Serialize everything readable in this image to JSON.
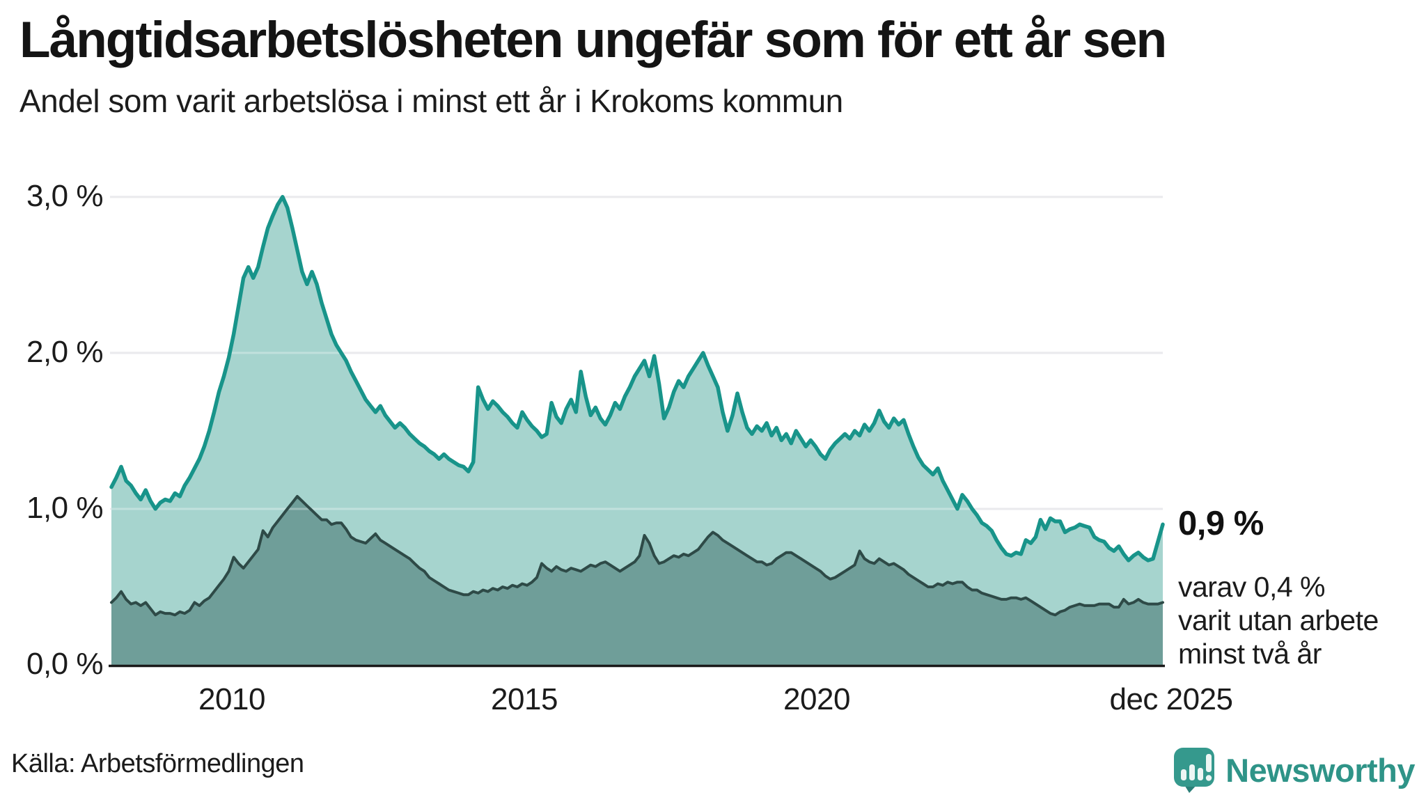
{
  "chart_data": {
    "type": "area",
    "title": "Långtidsarbetslösheten ungefär som för ett år sen",
    "subtitle": "Andel som varit arbetslösa i minst ett år i Krokoms kommun",
    "x_unit": "month",
    "x_range": [
      "jan 2008",
      "dec 2025"
    ],
    "x_ticks": [
      {
        "label": "2010",
        "month_index": 24
      },
      {
        "label": "2015",
        "month_index": 84
      },
      {
        "label": "2020",
        "month_index": 144
      },
      {
        "label": "dec 2025",
        "month_index": 215
      }
    ],
    "y_tick_labels": [
      "0,0 %",
      "1,0 %",
      "2,0 %",
      "3,0 %"
    ],
    "y_tick_values": [
      0,
      1,
      2,
      3
    ],
    "ylim": [
      0,
      3.2
    ],
    "grid": "horizontal",
    "legend_position": "none",
    "series": [
      {
        "name": "Andel som varit arbetslösa i minst ett år",
        "latest_label": "0,9 %",
        "latest_value": 0.9,
        "line_color": "#18948a",
        "fill_color": "#a6d4ce",
        "values": [
          1.14,
          1.2,
          1.27,
          1.18,
          1.15,
          1.1,
          1.06,
          1.12,
          1.05,
          1.0,
          1.04,
          1.06,
          1.05,
          1.1,
          1.08,
          1.15,
          1.2,
          1.26,
          1.32,
          1.4,
          1.5,
          1.62,
          1.75,
          1.85,
          1.97,
          2.12,
          2.3,
          2.48,
          2.55,
          2.48,
          2.55,
          2.68,
          2.8,
          2.88,
          2.95,
          3.0,
          2.93,
          2.8,
          2.66,
          2.52,
          2.44,
          2.52,
          2.44,
          2.32,
          2.22,
          2.12,
          2.05,
          2.0,
          1.95,
          1.88,
          1.82,
          1.76,
          1.7,
          1.66,
          1.62,
          1.66,
          1.6,
          1.56,
          1.52,
          1.55,
          1.52,
          1.48,
          1.45,
          1.42,
          1.4,
          1.37,
          1.35,
          1.32,
          1.35,
          1.32,
          1.3,
          1.28,
          1.27,
          1.24,
          1.3,
          1.78,
          1.7,
          1.64,
          1.69,
          1.66,
          1.62,
          1.59,
          1.55,
          1.52,
          1.62,
          1.57,
          1.53,
          1.5,
          1.46,
          1.48,
          1.68,
          1.59,
          1.55,
          1.64,
          1.7,
          1.62,
          1.88,
          1.72,
          1.6,
          1.65,
          1.58,
          1.54,
          1.6,
          1.68,
          1.64,
          1.72,
          1.78,
          1.85,
          1.9,
          1.95,
          1.85,
          1.98,
          1.8,
          1.58,
          1.65,
          1.75,
          1.82,
          1.78,
          1.85,
          1.9,
          1.95,
          2.0,
          1.92,
          1.85,
          1.78,
          1.62,
          1.5,
          1.6,
          1.74,
          1.62,
          1.52,
          1.48,
          1.53,
          1.5,
          1.55,
          1.47,
          1.52,
          1.44,
          1.48,
          1.42,
          1.5,
          1.45,
          1.4,
          1.44,
          1.4,
          1.35,
          1.32,
          1.38,
          1.42,
          1.45,
          1.48,
          1.45,
          1.5,
          1.47,
          1.54,
          1.5,
          1.55,
          1.63,
          1.56,
          1.52,
          1.58,
          1.54,
          1.57,
          1.48,
          1.4,
          1.33,
          1.28,
          1.25,
          1.22,
          1.26,
          1.18,
          1.12,
          1.06,
          1.0,
          1.09,
          1.05,
          1.0,
          0.96,
          0.91,
          0.89,
          0.86,
          0.8,
          0.75,
          0.71,
          0.7,
          0.72,
          0.71,
          0.8,
          0.78,
          0.82,
          0.93,
          0.87,
          0.94,
          0.92,
          0.92,
          0.85,
          0.87,
          0.88,
          0.9,
          0.89,
          0.88,
          0.82,
          0.8,
          0.79,
          0.75,
          0.73,
          0.76,
          0.71,
          0.67,
          0.7,
          0.72,
          0.69,
          0.67,
          0.68,
          0.79,
          0.9
        ]
      },
      {
        "name": "varav utan arbete minst två år",
        "latest_label": "varav 0,4 %\nvarit utan arbete\nminst två år",
        "latest_value": 0.4,
        "line_color": "#2e4a47",
        "fill_color": "#6f9e99",
        "values": [
          0.4,
          0.43,
          0.47,
          0.42,
          0.39,
          0.4,
          0.38,
          0.4,
          0.36,
          0.32,
          0.34,
          0.33,
          0.33,
          0.32,
          0.34,
          0.33,
          0.35,
          0.4,
          0.38,
          0.41,
          0.43,
          0.47,
          0.51,
          0.55,
          0.6,
          0.69,
          0.65,
          0.62,
          0.66,
          0.7,
          0.74,
          0.86,
          0.82,
          0.88,
          0.92,
          0.96,
          1.0,
          1.04,
          1.08,
          1.05,
          1.02,
          0.99,
          0.96,
          0.93,
          0.93,
          0.9,
          0.91,
          0.91,
          0.87,
          0.82,
          0.8,
          0.79,
          0.78,
          0.81,
          0.84,
          0.8,
          0.78,
          0.76,
          0.74,
          0.72,
          0.7,
          0.68,
          0.65,
          0.62,
          0.6,
          0.56,
          0.54,
          0.52,
          0.5,
          0.48,
          0.47,
          0.46,
          0.45,
          0.45,
          0.47,
          0.46,
          0.48,
          0.47,
          0.49,
          0.48,
          0.5,
          0.49,
          0.51,
          0.5,
          0.52,
          0.51,
          0.53,
          0.56,
          0.65,
          0.62,
          0.6,
          0.63,
          0.61,
          0.6,
          0.62,
          0.61,
          0.6,
          0.62,
          0.64,
          0.63,
          0.65,
          0.66,
          0.64,
          0.62,
          0.6,
          0.62,
          0.64,
          0.66,
          0.7,
          0.83,
          0.78,
          0.7,
          0.65,
          0.66,
          0.68,
          0.7,
          0.69,
          0.71,
          0.7,
          0.72,
          0.74,
          0.78,
          0.82,
          0.85,
          0.83,
          0.8,
          0.78,
          0.76,
          0.74,
          0.72,
          0.7,
          0.68,
          0.66,
          0.66,
          0.64,
          0.65,
          0.68,
          0.7,
          0.72,
          0.72,
          0.7,
          0.68,
          0.66,
          0.64,
          0.62,
          0.6,
          0.57,
          0.55,
          0.56,
          0.58,
          0.6,
          0.62,
          0.64,
          0.73,
          0.68,
          0.66,
          0.65,
          0.68,
          0.66,
          0.64,
          0.65,
          0.63,
          0.61,
          0.58,
          0.56,
          0.54,
          0.52,
          0.5,
          0.5,
          0.52,
          0.51,
          0.53,
          0.52,
          0.53,
          0.53,
          0.5,
          0.48,
          0.48,
          0.46,
          0.45,
          0.44,
          0.43,
          0.42,
          0.42,
          0.43,
          0.43,
          0.42,
          0.43,
          0.41,
          0.39,
          0.37,
          0.35,
          0.33,
          0.32,
          0.34,
          0.35,
          0.37,
          0.38,
          0.39,
          0.38,
          0.38,
          0.38,
          0.39,
          0.39,
          0.39,
          0.37,
          0.37,
          0.42,
          0.39,
          0.4,
          0.42,
          0.4,
          0.39,
          0.39,
          0.39,
          0.4
        ]
      }
    ]
  },
  "footer": {
    "source": "Källa: Arbetsförmedlingen",
    "brand": "Newsworthy"
  },
  "colors": {
    "background": "#ffffff",
    "gridline": "#e1e1e5",
    "gridline_overlay": "rgba(255,255,255,0.30)",
    "axis_line": "#1a1a1a",
    "text": "#1a1a1a",
    "brand_teal": "#2f9488",
    "logo_bubble": "#35998d",
    "logo_tail": "#2a7f78"
  }
}
